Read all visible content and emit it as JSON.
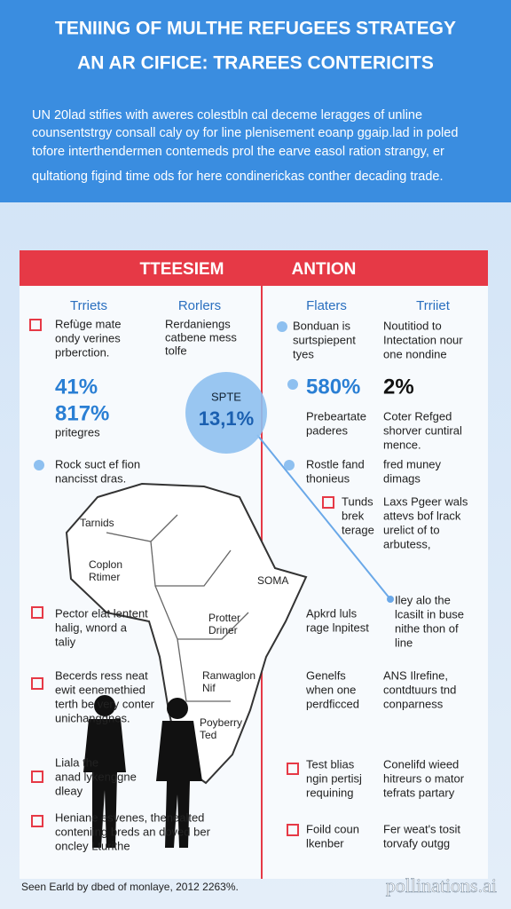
{
  "header": {
    "title_lines": [
      "TENIING OF MULTHE REFUGEES STRATEGY",
      "AN AR CIFICE: TRAREES CONTERICITS"
    ],
    "paragraph_lines": [
      "UN 20lad stifies with aweres colestbln cal deceme leragges of unline",
      "counsentstrgy consall caly oy for line plenisement eoanp ggaip.lad in poled",
      "tofore interthendermen contemeds prol the earve easol ration strangy, er",
      "qultationg figind time ods for here condinerickas conther decading trade."
    ]
  },
  "banner": {
    "left": "TTEESIEM",
    "right": "ANTION"
  },
  "columns": [
    "Trriets",
    "Rorlers",
    "Flaters",
    "Trriiet"
  ],
  "circle": {
    "label": "SPTE",
    "value": "13,1%"
  },
  "blocks": [
    {
      "lines": [
        "Refùge mate",
        "ondy verines",
        "prberction."
      ]
    },
    {
      "lines": [
        "Rerdaniengs",
        "catbene mess",
        "tolfe"
      ]
    },
    {
      "lines": [
        "41%",
        "817%"
      ]
    },
    {
      "lines": [
        "pritegres"
      ]
    },
    {
      "lines": [
        "Rock suct ef fion",
        "nancisst dras."
      ]
    },
    {
      "lines": [
        "Pector elat lentent",
        "halig, wnord a",
        "taliy"
      ]
    },
    {
      "lines": [
        "Becerds ress neat",
        "ewit eenemethied",
        "terth be very conter",
        "unichanggnes."
      ]
    },
    {
      "lines": [
        "Liala the",
        "anad lykenggne",
        "dleay"
      ]
    },
    {
      "lines": [
        "Heniane esvenes, thenealted",
        "conteniing breds an doved ber",
        "oncley Lturithe"
      ]
    },
    {
      "lines": [
        "Bonduan is",
        "surtspiepent",
        "tyes"
      ]
    },
    {
      "lines": [
        "Noutitiod to",
        "Intectation nour",
        "one nondine"
      ]
    },
    {
      "lines": [
        "580%"
      ]
    },
    {
      "lines": [
        "2%"
      ]
    },
    {
      "lines": [
        "Prebeartate",
        "paderes"
      ]
    },
    {
      "lines": [
        "Coter Refged",
        "shorver cuntiral",
        "mence."
      ]
    },
    {
      "lines": [
        "Rostle fand",
        "thonieus"
      ]
    },
    {
      "lines": [
        "fred muney",
        "dimags"
      ]
    },
    {
      "lines": [
        "Tunds",
        "brek",
        "terage"
      ]
    },
    {
      "lines": [
        "Laxs Pgeer wals",
        "attevs bof lrack",
        "urelict of to",
        "arbutess,"
      ]
    },
    {
      "lines": [
        "Apkrd luls",
        "rage lnpitest"
      ]
    },
    {
      "lines": [
        "Iley alo the",
        "lcasilt in buse",
        "nithe thon of",
        "line"
      ]
    },
    {
      "lines": [
        "Genelfs",
        "when one",
        "perdficced"
      ]
    },
    {
      "lines": [
        "ANS Ilrefine,",
        "contdtuurs tnd",
        "conparness"
      ]
    },
    {
      "lines": [
        "Test blias",
        "ngin pertisj",
        "requining"
      ]
    },
    {
      "lines": [
        "Conelifd wieed",
        "hitreurs o mator",
        "tefrats partary"
      ]
    },
    {
      "lines": [
        "Foild coun",
        "lkenber"
      ]
    },
    {
      "lines": [
        "Fer weat's tosit",
        "torvafy outgg"
      ]
    }
  ],
  "map_labels": [
    {
      "lines": [
        "Tarnids"
      ]
    },
    {
      "lines": [
        "Coplon",
        "Rtimer"
      ]
    },
    {
      "lines": [
        "SOMA"
      ]
    },
    {
      "lines": [
        "Protter",
        "Driner"
      ]
    },
    {
      "lines": [
        "Ranwaglon",
        "Nif"
      ]
    },
    {
      "lines": [
        "Poyberry",
        "Ted"
      ]
    }
  ],
  "footer": {
    "source": "Seen Earld by dbed of monlaye, 2012 2263%.",
    "brand": "pollinations.ai"
  }
}
